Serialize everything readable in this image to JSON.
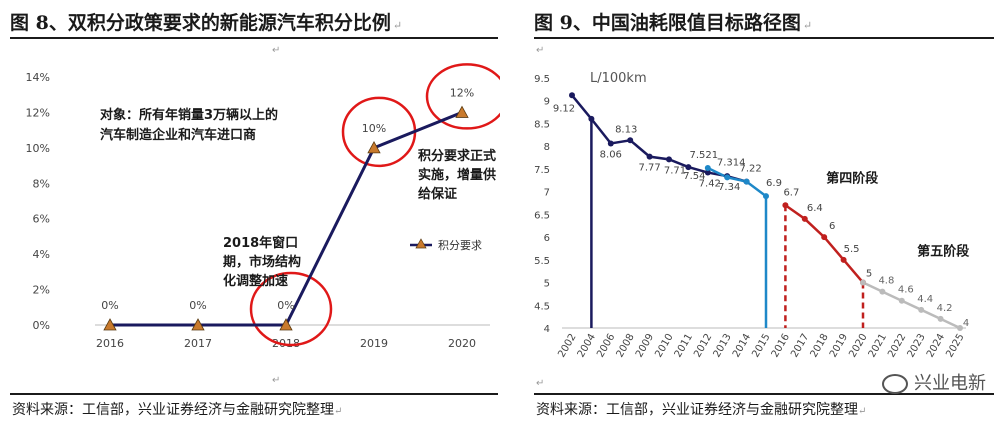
{
  "left": {
    "title": "图 8、双积分政策要求的新能源汽车积分比例",
    "source": "资料来源：工信部，兴业证券经济与金融研究院整理",
    "chart_data": {
      "type": "line",
      "categories": [
        "2016",
        "2017",
        "2018",
        "2019",
        "2020"
      ],
      "series": [
        {
          "name": "积分要求",
          "values": [
            0,
            0,
            0,
            10,
            12
          ]
        }
      ],
      "data_labels": [
        "0%",
        "0%",
        "0%",
        "10%",
        "12%"
      ],
      "yticks": [
        "0%",
        "2%",
        "4%",
        "6%",
        "8%",
        "10%",
        "12%",
        "14%"
      ],
      "ylim": [
        0,
        14
      ],
      "legend": "积分要求",
      "annotations": {
        "target_line1": "对象：所有年销量3万辆以上的",
        "target_line2": "汽车制造企业和汽车进口商",
        "window_line1": "2018年窗口",
        "window_line2": "期，市场结构",
        "window_line3": "化调整加速",
        "formal_line1": "积分要求正式",
        "formal_line2": "实施，增量供",
        "formal_line3": "给保证"
      }
    }
  },
  "right": {
    "title": "图 9、中国油耗限值目标路径图",
    "source": "资料来源：工信部，兴业证券经济与金融研究院整理",
    "watermark": "兴业电新",
    "chart_data": {
      "type": "line",
      "unit_label": "L/100km",
      "ylim": [
        4,
        9.5
      ],
      "yticks": [
        "4",
        "4.5",
        "5",
        "5.5",
        "6",
        "6.5",
        "7",
        "7.5",
        "8",
        "8.5",
        "9",
        "9.5"
      ],
      "xticks": [
        "2002",
        "2004",
        "2006",
        "2008",
        "2009",
        "2010",
        "2011",
        "2012",
        "2013",
        "2014",
        "2015",
        "2016",
        "2017",
        "2018",
        "2019",
        "2020",
        "2021",
        "2022",
        "2023",
        "2024",
        "2025"
      ],
      "series": [
        {
          "name": "historical",
          "points": [
            [
              0,
              9.12
            ],
            [
              1,
              8.6
            ],
            [
              2,
              8.06
            ],
            [
              3,
              8.13
            ],
            [
              4,
              7.77
            ],
            [
              5,
              7.71
            ],
            [
              6,
              7.54
            ],
            [
              7,
              7.42
            ],
            [
              8,
              7.34
            ],
            [
              9,
              7.22
            ]
          ],
          "labels": [
            "9.12",
            "",
            "8.06",
            "8.13",
            "7.77",
            "7.71",
            "7.54",
            "7.42",
            "7.34",
            ""
          ]
        },
        {
          "name": "phase3",
          "points": [
            [
              7,
              7.521
            ],
            [
              8,
              7.314
            ],
            [
              9,
              7.22
            ],
            [
              10,
              6.9
            ]
          ],
          "labels": [
            "7.521",
            "7.314",
            "7.22",
            "6.9"
          ]
        },
        {
          "name": "phase4",
          "points": [
            [
              11,
              6.7
            ],
            [
              12,
              6.4
            ],
            [
              13,
              6
            ],
            [
              14,
              5.5
            ],
            [
              15,
              5
            ]
          ],
          "labels": [
            "6.7",
            "6.4",
            "6",
            "5.5",
            "5"
          ]
        },
        {
          "name": "phase5",
          "points": [
            [
              15,
              5
            ],
            [
              16,
              4.8
            ],
            [
              17,
              4.6
            ],
            [
              18,
              4.4
            ],
            [
              19,
              4.2
            ],
            [
              20,
              4
            ]
          ],
          "labels": [
            "",
            "4.8",
            "4.6",
            "4.4",
            "4.2",
            "4"
          ]
        }
      ],
      "phase_labels": {
        "phase4": "第四阶段",
        "phase5": "第五阶段"
      }
    }
  }
}
